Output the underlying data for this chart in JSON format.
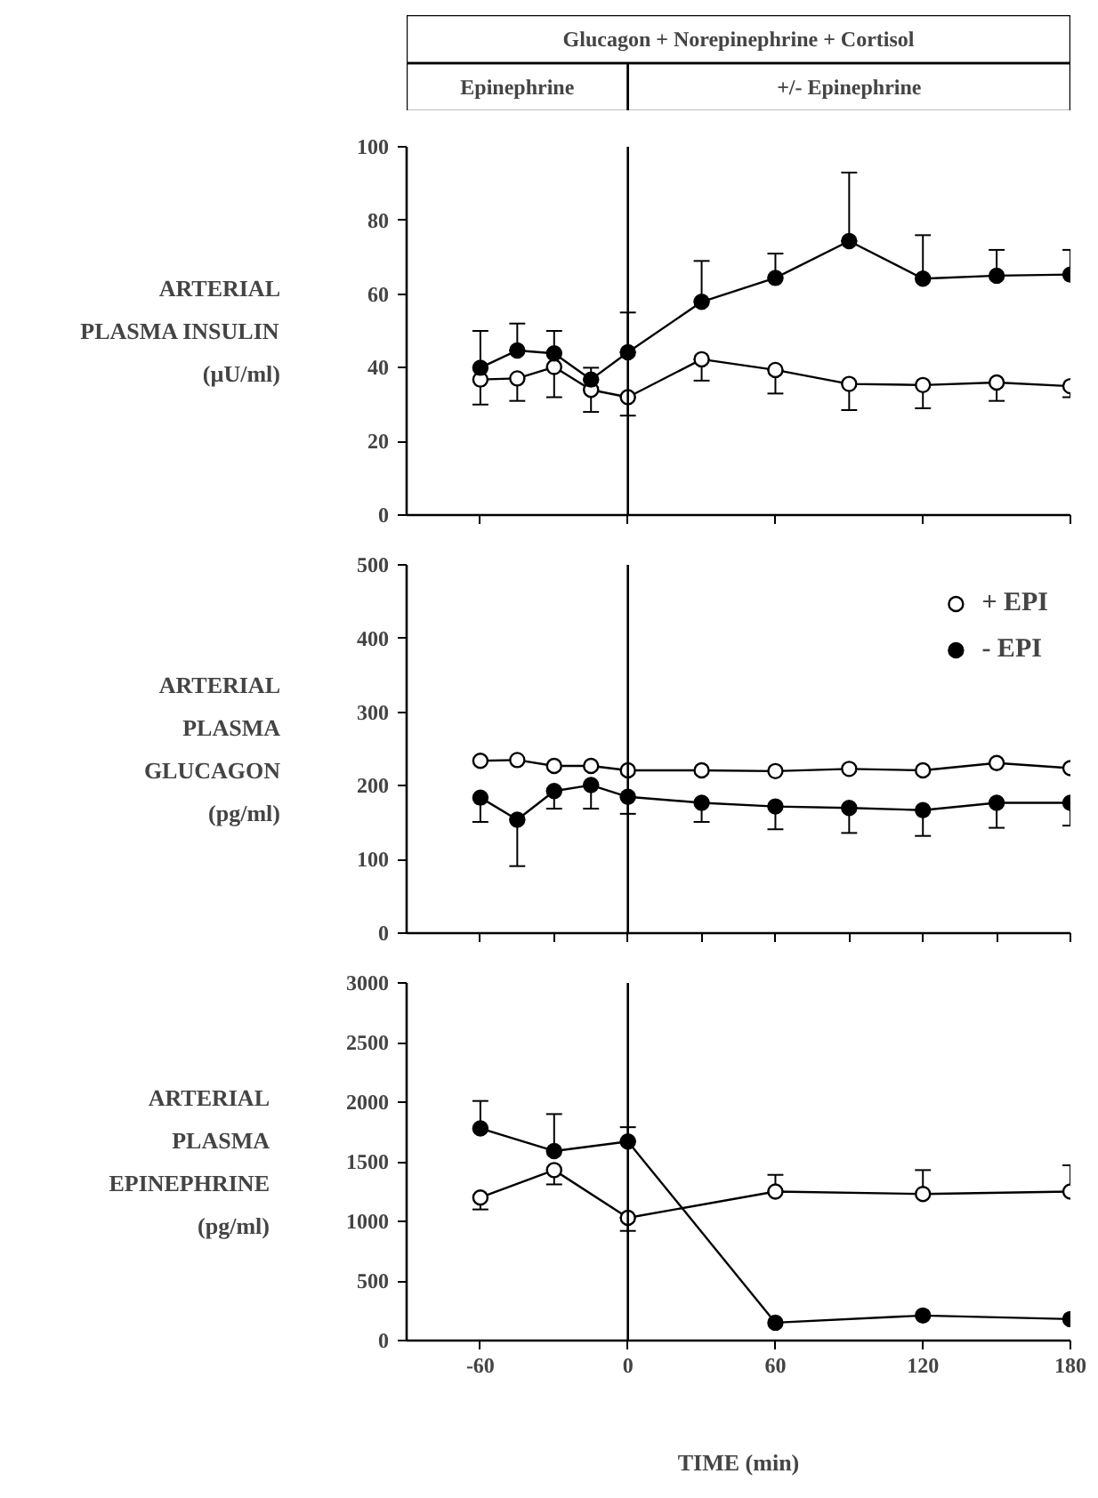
{
  "chart_data": [
    {
      "type": "line",
      "title": "Glucagon + Norepinephrine + Cortisol",
      "ylabel": "ARTERIAL\nPLASMA INSULIN\n(µU/ml)",
      "x": [
        -60,
        -45,
        -30,
        -15,
        0,
        30,
        60,
        90,
        120,
        150,
        180
      ],
      "xlim": [
        -90,
        180
      ],
      "xticks": [
        {
          "value": -60,
          "label": null
        },
        {
          "value": 0,
          "label": null
        },
        {
          "value": 60,
          "label": null
        },
        {
          "value": 120,
          "label": null
        },
        {
          "value": 180,
          "label": null
        }
      ],
      "ylim": [
        0,
        100
      ],
      "yticks": [
        0,
        20,
        40,
        60,
        80,
        100
      ],
      "tick_labels": "y",
      "marker": "circle",
      "grid": false,
      "annotations": [
        "Epinephrine",
        "+/- Epinephrine"
      ],
      "ref_lines": [
        {
          "axis": "x",
          "value": 0,
          "label": null
        }
      ],
      "series": [
        {
          "color": "#ffffff",
          "values": [
            36.8,
            37.1,
            40.2,
            34,
            32,
            42.3,
            39.4,
            35.6,
            35.3,
            36,
            35
          ],
          "errors": [
            [
              30,
              36.8
            ],
            [
              31,
              37.1
            ],
            [
              32,
              40.2
            ],
            [
              28,
              34
            ],
            [
              27,
              32
            ],
            [
              36.5,
              42.3
            ],
            [
              33,
              39.4
            ],
            [
              28.5,
              35.6
            ],
            [
              29,
              35.3
            ],
            [
              31,
              36
            ],
            [
              32,
              35
            ]
          ]
        },
        {
          "color": "#000000",
          "values": [
            40,
            44.7,
            43.9,
            36.8,
            44.2,
            57.9,
            64.4,
            74.4,
            64.2,
            65,
            65.3
          ],
          "errors": [
            [
              40,
              50
            ],
            [
              44.7,
              52
            ],
            [
              43.9,
              50
            ],
            [
              36.8,
              40
            ],
            [
              44.2,
              55
            ],
            [
              57.9,
              69
            ],
            [
              64.4,
              71
            ],
            [
              74.4,
              93
            ],
            [
              64.2,
              76
            ],
            [
              65,
              72
            ],
            [
              65.3,
              72
            ]
          ]
        }
      ]
    },
    {
      "type": "line",
      "ylabel": "ARTERIAL\nPLASMA\nGLUCAGON\n(pg/ml)",
      "x": [
        -60,
        -45,
        -30,
        -15,
        0,
        30,
        60,
        90,
        120,
        150,
        180
      ],
      "xlim": [
        -90,
        180
      ],
      "xticks": [
        {
          "value": -60,
          "label": null
        },
        {
          "value": -30,
          "label": null
        },
        {
          "value": 0,
          "label": null
        },
        {
          "value": 30,
          "label": null
        },
        {
          "value": 60,
          "label": null
        },
        {
          "value": 90,
          "label": null
        },
        {
          "value": 120,
          "label": null
        },
        {
          "value": 150,
          "label": null
        },
        {
          "value": 180,
          "label": null
        }
      ],
      "ylim": [
        0,
        500
      ],
      "yticks": [
        0,
        100,
        200,
        300,
        400,
        500
      ],
      "tick_labels": "y",
      "marker": "circle",
      "grid": false,
      "legend": "top right",
      "ref_lines": [
        {
          "axis": "x",
          "value": 0,
          "label": null
        }
      ],
      "series": [
        {
          "name": "+ EPI",
          "color": "#ffffff",
          "values": [
            234,
            235,
            227,
            227,
            221,
            221,
            220,
            223,
            221,
            231,
            224
          ]
        },
        {
          "name": "- EPI",
          "color": "#000000",
          "values": [
            184,
            154,
            193,
            201,
            185,
            177,
            172,
            170,
            167,
            177,
            177
          ],
          "errors": [
            [
              151,
              184
            ],
            [
              91,
              154
            ],
            [
              169,
              193
            ],
            [
              169,
              201
            ],
            [
              162,
              185
            ],
            [
              151,
              177
            ],
            [
              141,
              172
            ],
            [
              136,
              170
            ],
            [
              132,
              167
            ],
            [
              143,
              177
            ],
            [
              146,
              177
            ]
          ]
        }
      ]
    },
    {
      "type": "line",
      "ylabel": "ARTERIAL\nPLASMA\nEPINEPHRINE\n(pg/ml)",
      "xlabel": "TIME (min)",
      "x": [
        -60,
        -30,
        0,
        60,
        120,
        180
      ],
      "xlim": [
        -90,
        180
      ],
      "xticks": [
        -60,
        0,
        60,
        120,
        180
      ],
      "ylim": [
        0,
        3000
      ],
      "yticks": [
        0,
        500,
        1000,
        1500,
        2000,
        2500,
        3000
      ],
      "marker": "circle",
      "grid": false,
      "ref_lines": [
        {
          "axis": "x",
          "value": 0,
          "label": null
        }
      ],
      "series": [
        {
          "color": "#ffffff",
          "values": [
            1200,
            1430,
            1030,
            1250,
            1230,
            1250
          ],
          "errors": [
            [
              1100,
              1200
            ],
            [
              1310,
              1430
            ],
            [
              920,
              1030
            ],
            [
              1250,
              1390
            ],
            [
              1230,
              1430
            ],
            [
              1250,
              1470
            ]
          ]
        },
        {
          "color": "#000000",
          "values": [
            1780,
            1590,
            1670,
            150,
            210,
            180
          ],
          "errors": [
            [
              1780,
              2010
            ],
            [
              1590,
              1900
            ],
            [
              1670,
              1790
            ],
            null,
            null,
            null
          ]
        }
      ]
    }
  ]
}
